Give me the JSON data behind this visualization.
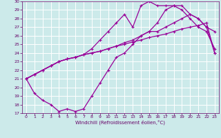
{
  "xlabel": "Windchill (Refroidissement éolien,°C)",
  "bg_color": "#cceaea",
  "grid_color": "#ffffff",
  "line_color": "#990099",
  "text_color": "#660066",
  "xlim": [
    -0.5,
    23.5
  ],
  "ylim": [
    17,
    30
  ],
  "xticks": [
    0,
    1,
    2,
    3,
    4,
    5,
    6,
    7,
    8,
    9,
    10,
    11,
    12,
    13,
    14,
    15,
    16,
    17,
    18,
    19,
    20,
    21,
    22,
    23
  ],
  "yticks": [
    17,
    18,
    19,
    20,
    21,
    22,
    23,
    24,
    25,
    26,
    27,
    28,
    29,
    30
  ],
  "line1_x": [
    0,
    1,
    2,
    3,
    4,
    5,
    6,
    7,
    8,
    9,
    10,
    11,
    12,
    13,
    14,
    15,
    16,
    17,
    18,
    19,
    20,
    21,
    22,
    23
  ],
  "line1_y": [
    21,
    21.5,
    22,
    22.5,
    23,
    23.3,
    23.5,
    23.8,
    24,
    24.2,
    24.5,
    24.8,
    25,
    25.3,
    25.5,
    25.8,
    26,
    26.2,
    26.5,
    26.8,
    27,
    27.2,
    27.5,
    24
  ],
  "line2_x": [
    0,
    1,
    2,
    3,
    4,
    5,
    6,
    7,
    8,
    9,
    10,
    11,
    12,
    13,
    14,
    15,
    16,
    17,
    18,
    19,
    20,
    21,
    22,
    23
  ],
  "line2_y": [
    21,
    21.5,
    22,
    22.5,
    23,
    23.3,
    23.5,
    23.8,
    24,
    24.2,
    24.5,
    24.8,
    25.2,
    25.5,
    26,
    26.5,
    26.5,
    27,
    27.5,
    28,
    28.5,
    28,
    27,
    26.5
  ],
  "line3_x": [
    0,
    1,
    2,
    3,
    4,
    5,
    6,
    7,
    8,
    9,
    10,
    11,
    12,
    13,
    14,
    15,
    16,
    17,
    18,
    19,
    20,
    21,
    22,
    23
  ],
  "line3_y": [
    21,
    19.3,
    18.5,
    18,
    17.2,
    17.5,
    17.2,
    17.5,
    19,
    20.5,
    22,
    23.5,
    24,
    25,
    26,
    26.5,
    27.5,
    29,
    29.5,
    29.5,
    28.5,
    28,
    27,
    24
  ],
  "line4_x": [
    0,
    1,
    2,
    3,
    4,
    5,
    6,
    7,
    8,
    9,
    10,
    11,
    12,
    13,
    14,
    15,
    16,
    17,
    18,
    19,
    20,
    21,
    22,
    23
  ],
  "line4_y": [
    21,
    21.5,
    22,
    22.5,
    23,
    23.3,
    23.5,
    23.8,
    24.5,
    25.5,
    26.5,
    27.5,
    28.5,
    27,
    29.5,
    30,
    29.5,
    29.5,
    29.5,
    29,
    28,
    27,
    26.5,
    24.5
  ]
}
